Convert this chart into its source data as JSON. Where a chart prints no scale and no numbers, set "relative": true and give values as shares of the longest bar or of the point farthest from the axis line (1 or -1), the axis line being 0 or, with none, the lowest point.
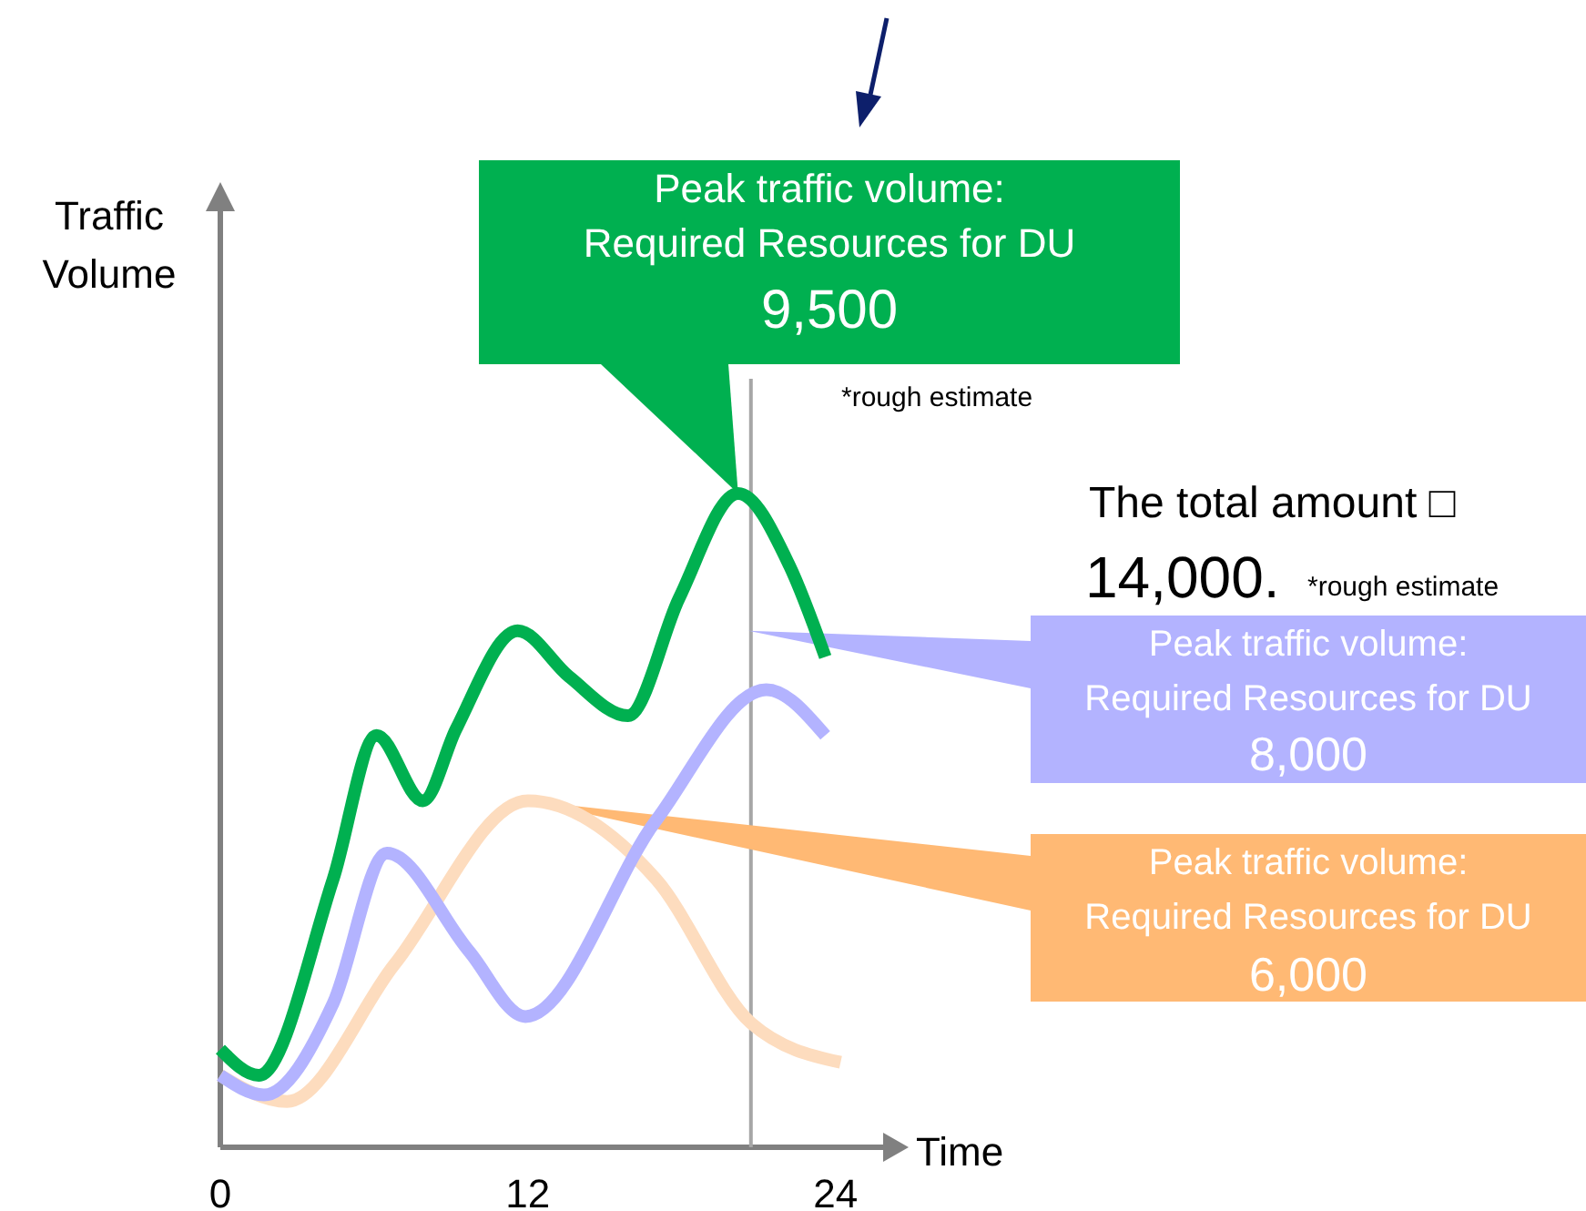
{
  "chart_data": {
    "type": "line",
    "relative": true,
    "xlabel": "Time",
    "ylabel": "Traffic\nVolume",
    "xlim": [
      0,
      26
    ],
    "xticks": [
      0,
      12,
      24
    ],
    "tick_labels": "x",
    "line_style": "solid",
    "ref_lines": [
      {
        "axis": "x",
        "value": 20.7,
        "color": "#a6a6a6"
      }
    ],
    "series": [
      {
        "color": "#00b050",
        "x": [
          0,
          1.5,
          4.4,
          6.1,
          7.9,
          9.2,
          11.6,
          13.6,
          15.9,
          17.9,
          20.2,
          22.2,
          23.6
        ],
        "values": [
          0.15,
          0.11,
          0.41,
          0.63,
          0.53,
          0.64,
          0.79,
          0.72,
          0.66,
          0.84,
          1.0,
          0.89,
          0.75
        ]
      },
      {
        "color": "#b3b3ff",
        "x": [
          0,
          1.7,
          4.4,
          6.5,
          9.7,
          11.9,
          17.0,
          21.3,
          23.6
        ],
        "values": [
          0.11,
          0.08,
          0.22,
          0.45,
          0.3,
          0.2,
          0.5,
          0.7,
          0.63
        ]
      },
      {
        "color": "#fddcbe",
        "x": [
          0,
          2.6,
          6.8,
          12.0,
          17.0,
          20.7,
          24.2
        ],
        "values": [
          0.11,
          0.07,
          0.28,
          0.53,
          0.41,
          0.19,
          0.13
        ]
      }
    ],
    "annotations": [
      {
        "text": "Peak traffic volume:\nRequired Resources for DU\n9,500",
        "x": 20.2,
        "y": 1.0
      },
      "*rough estimate",
      "The total amount □",
      "14,000.",
      "*rough estimate",
      {
        "text": "Peak traffic volume:\nRequired Resources for DU\n8,000",
        "x": 20.6,
        "y": 0.79
      },
      {
        "text": "Peak traffic volume:\nRequired Resources for DU\n6,000",
        "x": 12.0,
        "y": 0.53
      }
    ]
  }
}
